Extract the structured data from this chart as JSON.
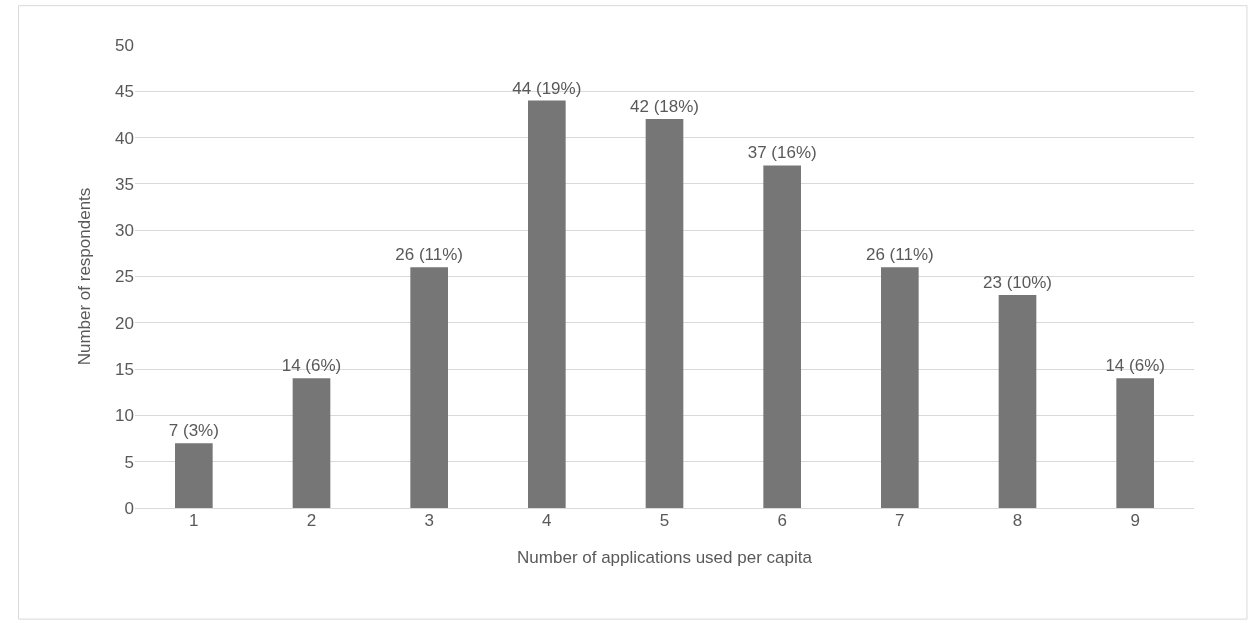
{
  "chart_data": {
    "type": "bar",
    "xlabel": "Number of applications used per capita",
    "ylabel": "Number of respondents",
    "categories": [
      "1",
      "2",
      "3",
      "4",
      "5",
      "6",
      "7",
      "8",
      "9"
    ],
    "values": [
      7,
      14,
      26,
      44,
      42,
      37,
      26,
      23,
      14
    ],
    "value_labels": [
      "7 (3%)",
      "14 (6%)",
      "26 (11%)",
      "44 (19%)",
      "42 (18%)",
      "37 (16%)",
      "26 (11%)",
      "23 (10%)",
      "14 (6%)"
    ],
    "color": "#767676",
    "ylim": [
      0,
      50
    ],
    "yticks": [
      0,
      5,
      10,
      15,
      20,
      25,
      30,
      35,
      40,
      45,
      50
    ],
    "grid": "y"
  }
}
